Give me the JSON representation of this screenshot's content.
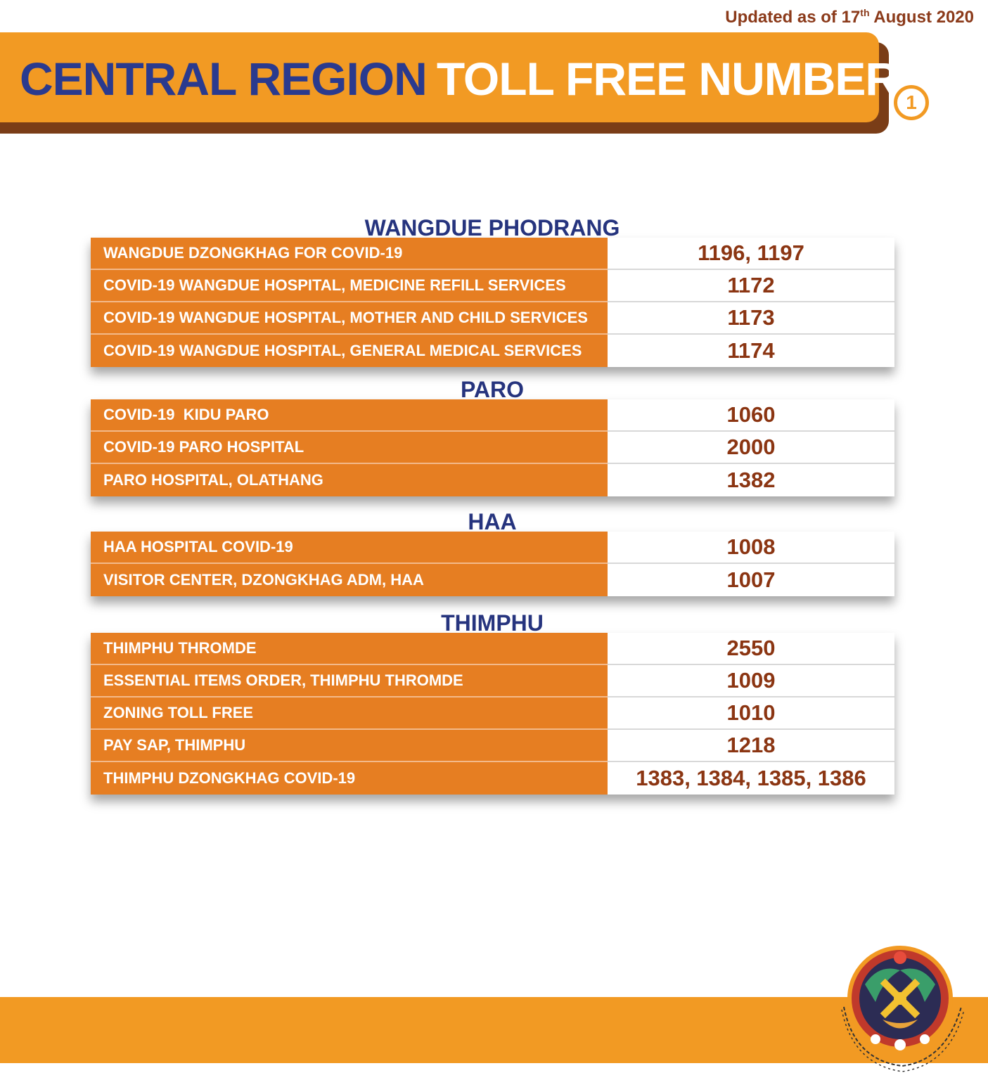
{
  "updated": {
    "prefix": "Updated as of 17",
    "sup": "th",
    "suffix": " August 2020"
  },
  "header": {
    "title_part1": "CENTRAL REGION",
    "title_part2": "TOLL FREE NUMBERS",
    "page_number": "1"
  },
  "sections": [
    {
      "title": "WANGDUE PHODRANG",
      "rows": [
        {
          "label": "WANGDUE DZONGKHAG FOR COVID-19",
          "number": "1196, 1197"
        },
        {
          "label": "COVID-19 WANGDUE HOSPITAL, MEDICINE REFILL SERVICES",
          "number": "1172"
        },
        {
          "label": "COVID-19 WANGDUE HOSPITAL, MOTHER AND CHILD SERVICES",
          "number": "1173"
        },
        {
          "label": "COVID-19 WANGDUE HOSPITAL, GENERAL MEDICAL SERVICES",
          "number": "1174"
        }
      ]
    },
    {
      "title": "PARO",
      "rows": [
        {
          "label": "COVID-19  KIDU PARO",
          "number": "1060"
        },
        {
          "label": "COVID-19 PARO HOSPITAL",
          "number": "2000"
        },
        {
          "label": "PARO HOSPITAL, OLATHANG",
          "number": "1382"
        }
      ]
    },
    {
      "title": "HAA",
      "rows": [
        {
          "label": "HAA HOSPITAL COVID-19",
          "number": "1008"
        },
        {
          "label": "VISITOR CENTER, DZONGKHAG ADM, HAA",
          "number": "1007"
        }
      ]
    },
    {
      "title": "THIMPHU",
      "rows": [
        {
          "label": "THIMPHU THROMDE",
          "number": "2550"
        },
        {
          "label": "ESSENTIAL ITEMS ORDER, THIMPHU THROMDE",
          "number": "1009"
        },
        {
          "label": "ZONING TOLL FREE",
          "number": "1010"
        },
        {
          "label": "PAY SAP, THIMPHU",
          "number": "1218"
        },
        {
          "label": "THIMPHU DZONGKHAG COVID-19",
          "number": "1383, 1384, 1385, 1386"
        }
      ]
    }
  ],
  "emblem": {
    "icon": "national-emblem-icon"
  },
  "colors": {
    "orange": "#f29a23",
    "row_orange": "#e67e22",
    "navy": "#26347e",
    "brown": "#8b3512"
  }
}
